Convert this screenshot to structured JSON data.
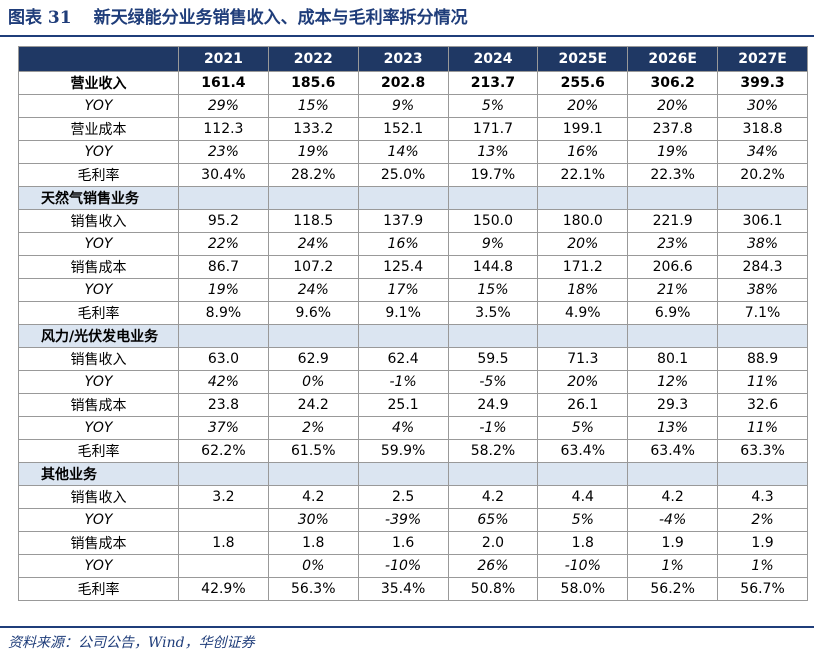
{
  "header": {
    "label": "图表 31",
    "title": "新天绿能分业务销售收入、成本与毛利率拆分情况"
  },
  "table": {
    "columns": [
      "2021",
      "2022",
      "2023",
      "2024",
      "2025E",
      "2026E",
      "2027E"
    ],
    "blocks": [
      {
        "rows": [
          {
            "label": "营业收入",
            "values": [
              "161.4",
              "185.6",
              "202.8",
              "213.7",
              "255.6",
              "306.2",
              "399.3"
            ]
          },
          {
            "label": "YOY",
            "values": [
              "29%",
              "15%",
              "9%",
              "5%",
              "20%",
              "20%",
              "30%"
            ]
          },
          {
            "label": "营业成本",
            "values": [
              "112.3",
              "133.2",
              "152.1",
              "171.7",
              "199.1",
              "237.8",
              "318.8"
            ]
          },
          {
            "label": "YOY",
            "values": [
              "23%",
              "19%",
              "14%",
              "13%",
              "16%",
              "19%",
              "34%"
            ]
          },
          {
            "label": "毛利率",
            "values": [
              "30.4%",
              "28.2%",
              "25.0%",
              "19.7%",
              "22.1%",
              "22.3%",
              "20.2%"
            ]
          }
        ]
      },
      {
        "title": "天然气销售业务",
        "rows": [
          {
            "label": "销售收入",
            "values": [
              "95.2",
              "118.5",
              "137.9",
              "150.0",
              "180.0",
              "221.9",
              "306.1"
            ]
          },
          {
            "label": "YOY",
            "values": [
              "22%",
              "24%",
              "16%",
              "9%",
              "20%",
              "23%",
              "38%"
            ]
          },
          {
            "label": "销售成本",
            "values": [
              "86.7",
              "107.2",
              "125.4",
              "144.8",
              "171.2",
              "206.6",
              "284.3"
            ]
          },
          {
            "label": "YOY",
            "values": [
              "19%",
              "24%",
              "17%",
              "15%",
              "18%",
              "21%",
              "38%"
            ]
          },
          {
            "label": "毛利率",
            "values": [
              "8.9%",
              "9.6%",
              "9.1%",
              "3.5%",
              "4.9%",
              "6.9%",
              "7.1%"
            ]
          }
        ]
      },
      {
        "title": "风力/光伏发电业务",
        "rows": [
          {
            "label": "销售收入",
            "values": [
              "63.0",
              "62.9",
              "62.4",
              "59.5",
              "71.3",
              "80.1",
              "88.9"
            ]
          },
          {
            "label": "YOY",
            "values": [
              "42%",
              "0%",
              "-1%",
              "-5%",
              "20%",
              "12%",
              "11%"
            ]
          },
          {
            "label": "销售成本",
            "values": [
              "23.8",
              "24.2",
              "25.1",
              "24.9",
              "26.1",
              "29.3",
              "32.6"
            ]
          },
          {
            "label": "YOY",
            "values": [
              "37%",
              "2%",
              "4%",
              "-1%",
              "5%",
              "13%",
              "11%"
            ]
          },
          {
            "label": "毛利率",
            "values": [
              "62.2%",
              "61.5%",
              "59.9%",
              "58.2%",
              "63.4%",
              "63.4%",
              "63.3%"
            ]
          }
        ]
      },
      {
        "title": "其他业务",
        "rows": [
          {
            "label": "销售收入",
            "values": [
              "3.2",
              "4.2",
              "2.5",
              "4.2",
              "4.4",
              "4.2",
              "4.3"
            ]
          },
          {
            "label": "YOY",
            "values": [
              null,
              "30%",
              "-39%",
              "65%",
              "5%",
              "-4%",
              "2%"
            ]
          },
          {
            "label": "销售成本",
            "values": [
              "1.8",
              "1.8",
              "1.6",
              "2.0",
              "1.8",
              "1.9",
              "1.9"
            ]
          },
          {
            "label": "YOY",
            "values": [
              null,
              "0%",
              "-10%",
              "26%",
              "-10%",
              "1%",
              "1%"
            ]
          },
          {
            "label": "毛利率",
            "values": [
              "42.9%",
              "56.3%",
              "35.4%",
              "50.8%",
              "58.0%",
              "56.2%",
              "56.7%"
            ]
          }
        ]
      }
    ]
  },
  "footer": {
    "source": "资料来源：公司公告，Wind，华创证券"
  }
}
